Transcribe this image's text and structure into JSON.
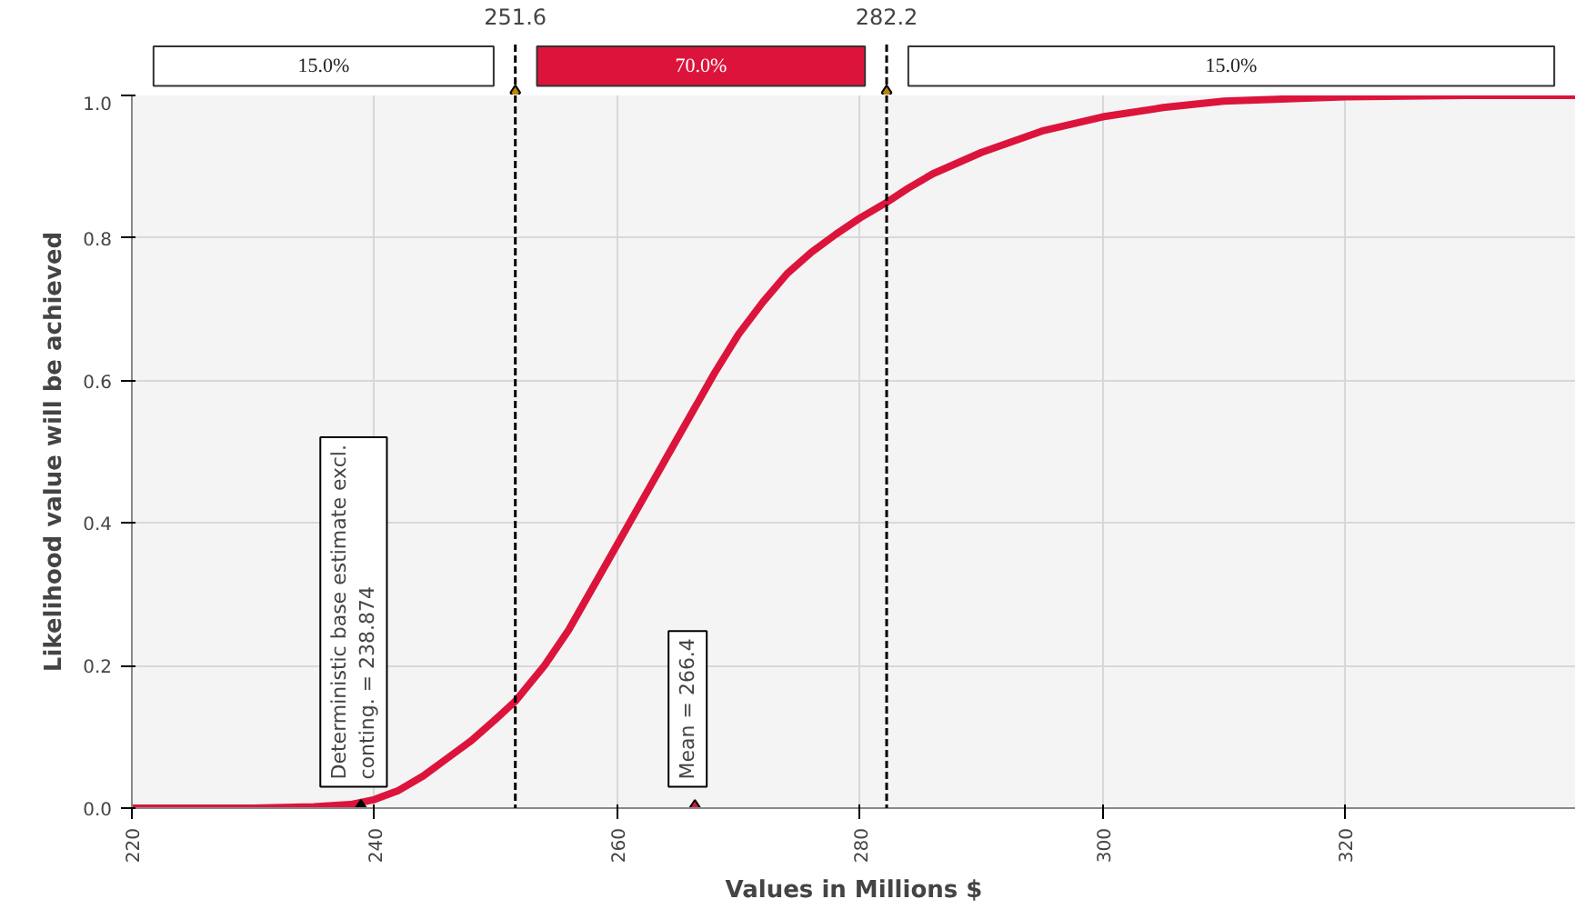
{
  "chart_data": {
    "type": "line",
    "xlabel": "Values in Millions $",
    "ylabel": "Likelihood value will be achieved",
    "x": [
      220,
      230,
      235,
      238,
      240,
      242,
      244,
      246,
      248,
      250,
      251.6,
      254,
      256,
      258,
      260,
      262,
      264,
      266,
      268,
      270,
      272,
      274,
      276,
      278,
      280,
      282.2,
      284,
      286,
      290,
      295,
      300,
      305,
      310,
      320,
      330,
      339
    ],
    "series": [
      {
        "color": "#dc143c",
        "values": [
          0,
          0,
          0.002,
          0.005,
          0.012,
          0.025,
          0.045,
          0.07,
          0.095,
          0.125,
          0.15,
          0.2,
          0.25,
          0.31,
          0.37,
          0.43,
          0.49,
          0.55,
          0.61,
          0.665,
          0.71,
          0.75,
          0.78,
          0.805,
          0.828,
          0.85,
          0.87,
          0.89,
          0.92,
          0.95,
          0.97,
          0.983,
          0.992,
          0.998,
          1.0,
          1.0
        ]
      }
    ],
    "xlim": [
      220,
      339
    ],
    "xticks": [
      220,
      240,
      260,
      280,
      300,
      320
    ],
    "ylim": [
      0,
      1
    ],
    "yticks": [
      {
        "value": 0,
        "label": "0.0"
      },
      0.2,
      0.4,
      0.6,
      0.8,
      {
        "value": 1,
        "label": "1.0"
      }
    ],
    "grid": true,
    "marker": "none",
    "line_style": "solid",
    "ref_lines": [
      {
        "axis": "x",
        "value": 251.6,
        "label": "251.6",
        "line_style": "dashed",
        "color": "#000000"
      },
      {
        "axis": "x",
        "value": 282.2,
        "label": "282.2",
        "line_style": "dashed",
        "color": "#000000"
      }
    ],
    "annotations": [
      "15.0%",
      "70.0%",
      "15.0%",
      {
        "text": "Deterministic base estimate excl.\nconting. = 238.874",
        "x": 238.874,
        "y": 0
      },
      {
        "text": "Mean = 266.4",
        "x": 266.4,
        "y": 0
      }
    ]
  }
}
